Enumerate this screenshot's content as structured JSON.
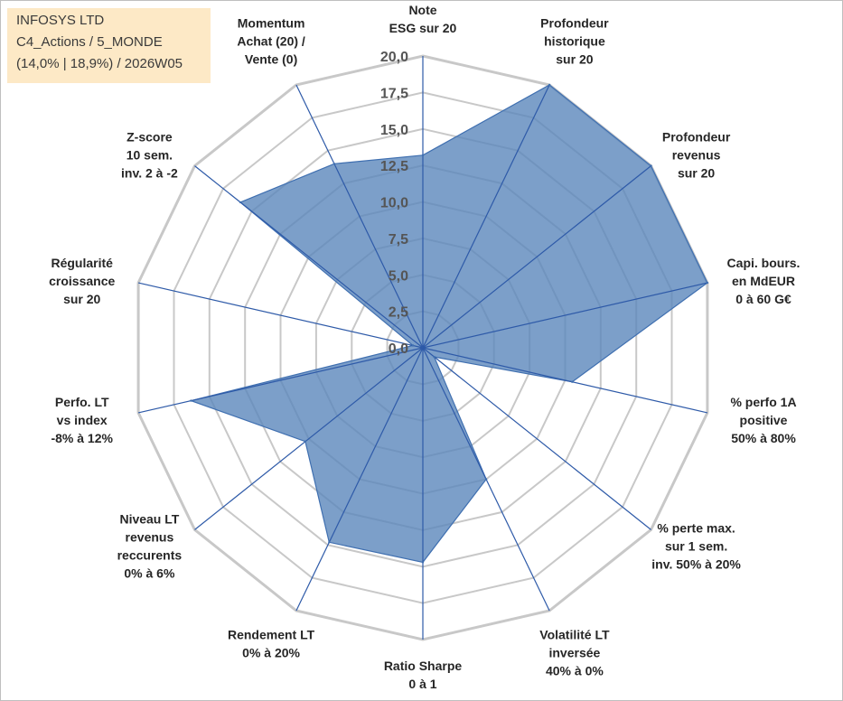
{
  "info": {
    "line1": "INFOSYS LTD",
    "line2": "C4_Actions / 5_MONDE",
    "line3": "(14,0% | 18,9%) / 2026W05"
  },
  "colors": {
    "fill": "#5b87bc",
    "stroke": "#3f6fb0",
    "grid": "#c8c8c8",
    "spoke": "#2e5aa8"
  },
  "chart_data": {
    "type": "radar",
    "title": "",
    "rmin": 0,
    "rmax": 20,
    "tick_step": 2.5,
    "tick_labels": [
      "0,0",
      "2,5",
      "5,0",
      "7,5",
      "10,0",
      "12,5",
      "15,0",
      "17,5",
      "20,0"
    ],
    "axes": [
      {
        "label": [
          "Note",
          "ESG sur 20"
        ],
        "value": 13.2
      },
      {
        "label": [
          "Profondeur",
          "historique",
          "sur 20"
        ],
        "value": 20.0
      },
      {
        "label": [
          "Profondeur",
          "revenus",
          "sur 20"
        ],
        "value": 20.0
      },
      {
        "label": [
          "Capi. bours.",
          "en MdEUR",
          "0 à 60 G€"
        ],
        "value": 20.0
      },
      {
        "label": [
          "% perfo 1A",
          "positive",
          "50% à 80%"
        ],
        "value": 10.5
      },
      {
        "label": [
          "% perte max.",
          "sur 1 sem.",
          "inv. 50% à 20%"
        ],
        "value": 1.0
      },
      {
        "label": [
          "Volatilité LT",
          "inversée",
          "40% à 0%"
        ],
        "value": 10.0
      },
      {
        "label": [
          "Ratio Sharpe",
          "0 à 1"
        ],
        "value": 14.7
      },
      {
        "label": [
          "Rendement LT",
          "0% à 20%"
        ],
        "value": 14.8
      },
      {
        "label": [
          "Niveau LT",
          "revenus",
          "reccurents",
          "0% à 6%"
        ],
        "value": 10.3
      },
      {
        "label": [
          "Perfo. LT",
          "vs index",
          "-8% à 12%"
        ],
        "value": 16.3
      },
      {
        "label": [
          "Régularité",
          "croissance",
          "sur 20"
        ],
        "value": 0.7
      },
      {
        "label": [
          "Z-score",
          "10 sem.",
          "inv. 2 à -2"
        ],
        "value": 16.0
      },
      {
        "label": [
          "Momentum",
          "Achat (20) /",
          "Vente (0)"
        ],
        "value": 14.0
      }
    ]
  }
}
